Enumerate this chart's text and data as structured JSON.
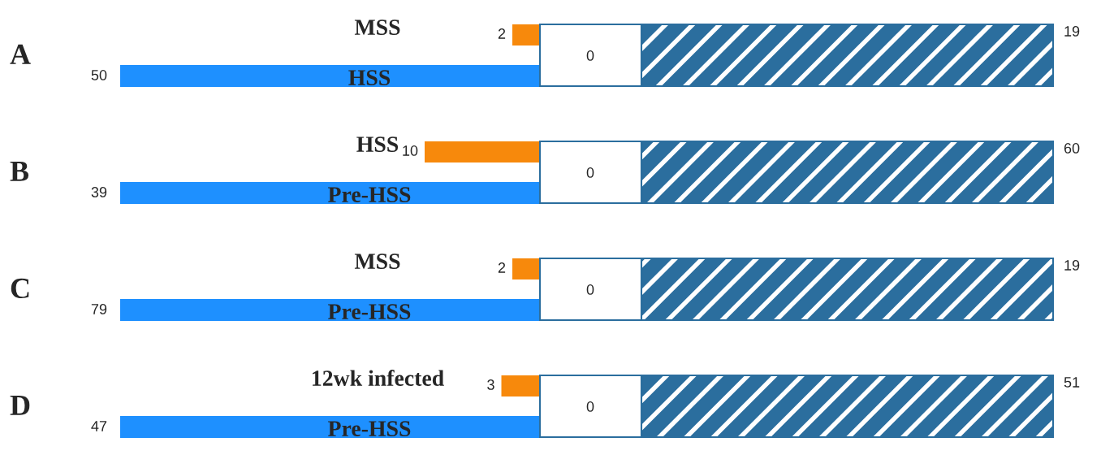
{
  "chart_data": [
    {
      "type": "other",
      "data_labels": true,
      "title": "A",
      "categories": [
        "MSS",
        "HSS"
      ],
      "values": [
        2,
        50
      ],
      "colors": [
        "#f7890c",
        "#1e90ff"
      ],
      "annotations": [
        "0",
        "19"
      ]
    },
    {
      "type": "other",
      "data_labels": true,
      "title": "B",
      "categories": [
        "HSS",
        "Pre-HSS"
      ],
      "values": [
        10,
        39
      ],
      "colors": [
        "#f7890c",
        "#1e90ff"
      ],
      "annotations": [
        "0",
        "60"
      ]
    },
    {
      "type": "other",
      "data_labels": true,
      "title": "C",
      "categories": [
        "MSS",
        "Pre-HSS"
      ],
      "values": [
        2,
        79
      ],
      "colors": [
        "#f7890c",
        "#1e90ff"
      ],
      "annotations": [
        "0",
        "19"
      ]
    },
    {
      "type": "other",
      "data_labels": true,
      "title": "D",
      "categories": [
        "12wk infected",
        "Pre-HSS"
      ],
      "values": [
        3,
        47
      ],
      "colors": [
        "#f7890c",
        "#1e90ff"
      ],
      "annotations": [
        "0",
        "51"
      ]
    }
  ]
}
